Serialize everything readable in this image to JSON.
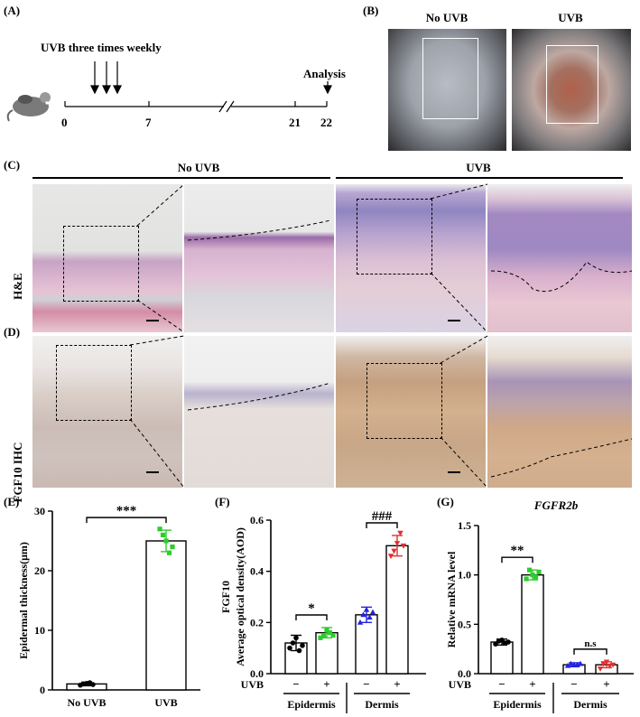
{
  "panels": {
    "A": "(A)",
    "B": "(B)",
    "C": "(C)",
    "D": "(D)",
    "E": "(E)",
    "F": "(F)",
    "G": "(G)"
  },
  "timeline": {
    "uvb_label": "UVB three times weekly",
    "analysis_label": "Analysis",
    "ticks": [
      "0",
      "7",
      "21",
      "22"
    ]
  },
  "photos": {
    "no_uvb": "No UVB",
    "uvb": "UVB"
  },
  "histology": {
    "no_uvb": "No UVB",
    "uvb": "UVB",
    "row1": "H&E",
    "row2": "FGF10 IHC"
  },
  "chart_data": [
    {
      "type": "bar",
      "panel": "E",
      "ylabel": "Epidermal thickness(μm)",
      "categories": [
        "No UVB",
        "UVB"
      ],
      "values": [
        1,
        25
      ],
      "errors": [
        0.3,
        1.8
      ],
      "points": [
        [
          0.8,
          1.0,
          1.1,
          1.2,
          0.9
        ],
        [
          27,
          26,
          25,
          23,
          24
        ]
      ],
      "ylim": [
        0,
        30
      ],
      "yticks": [
        "0",
        "10",
        "20",
        "30"
      ],
      "significance": "***",
      "colors": [
        "#000000",
        "#2ecc2e"
      ]
    },
    {
      "type": "bar",
      "panel": "F",
      "ylabel": "FGF10",
      "ylabel2": "Average optical density(AOD)",
      "categories": [
        "−",
        "+",
        "−",
        "+"
      ],
      "groups": [
        "Epidermis",
        "Dermis"
      ],
      "treatment_label": "UVB",
      "values": [
        0.12,
        0.16,
        0.23,
        0.5
      ],
      "errors": [
        0.03,
        0.02,
        0.03,
        0.04
      ],
      "points": [
        [
          0.1,
          0.12,
          0.14,
          0.09,
          0.11
        ],
        [
          0.14,
          0.15,
          0.17,
          0.16,
          0.15
        ],
        [
          0.2,
          0.23,
          0.25,
          0.22,
          0.24
        ],
        [
          0.46,
          0.48,
          0.51,
          0.55,
          0.5
        ]
      ],
      "ylim": [
        0,
        0.6
      ],
      "yticks": [
        "0.0",
        "0.2",
        "0.4",
        "0.6"
      ],
      "significance": [
        "*",
        "###"
      ],
      "colors": [
        "#000000",
        "#2ecc2e",
        "#2323e0",
        "#e03030"
      ]
    },
    {
      "type": "bar",
      "panel": "G",
      "title": "FGFR2b",
      "ylabel": "Relative mRNA level",
      "categories": [
        "−",
        "+",
        "−",
        "+"
      ],
      "groups": [
        "Epidermis",
        "Dermis"
      ],
      "treatment_label": "UVB",
      "values": [
        0.32,
        1.0,
        0.09,
        0.09
      ],
      "errors": [
        0.03,
        0.05,
        0.02,
        0.03
      ],
      "points": [
        [
          0.3,
          0.33,
          0.34,
          0.31,
          0.32
        ],
        [
          0.96,
          1.05,
          1.0,
          0.98,
          1.03
        ],
        [
          0.08,
          0.1,
          0.09,
          0.09,
          0.1
        ],
        [
          0.05,
          0.1,
          0.12,
          0.08,
          0.09
        ]
      ],
      "ylim": [
        0,
        1.5
      ],
      "yticks": [
        "0.0",
        "0.5",
        "1.0",
        "1.5"
      ],
      "significance": [
        "**",
        "n.s"
      ],
      "colors": [
        "#000000",
        "#2ecc2e",
        "#2323e0",
        "#e03030"
      ]
    }
  ]
}
